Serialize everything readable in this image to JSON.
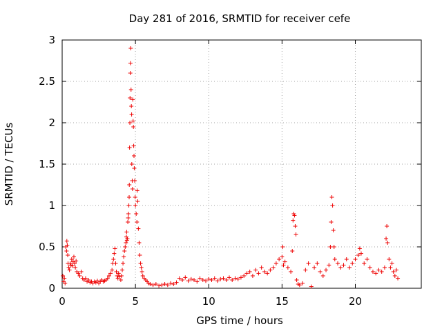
{
  "chart_data": {
    "type": "scatter",
    "title": "Day 281 of 2016, SRMTID for receiver cefe",
    "xlabel": "GPS time / hours",
    "ylabel": "SRMTID / TECUs",
    "xlim": [
      0,
      24.5
    ],
    "ylim": [
      0,
      3
    ],
    "xticks": [
      0,
      5,
      10,
      15,
      20
    ],
    "yticks": [
      0,
      0.5,
      1,
      1.5,
      2,
      2.5,
      3
    ],
    "ytick_labels": [
      "0",
      "0.5",
      "1",
      "1.5",
      "2",
      "2.5",
      "3"
    ],
    "grid": true,
    "marker": "+",
    "color": "#ee0000",
    "series": [
      {
        "name": "SRMTID",
        "points": [
          [
            0.05,
            0.15
          ],
          [
            0.1,
            0.08
          ],
          [
            0.15,
            0.12
          ],
          [
            0.2,
            0.06
          ],
          [
            0.25,
            0.5
          ],
          [
            0.3,
            0.45
          ],
          [
            0.32,
            0.57
          ],
          [
            0.35,
            0.52
          ],
          [
            0.38,
            0.4
          ],
          [
            0.4,
            0.3
          ],
          [
            0.45,
            0.25
          ],
          [
            0.5,
            0.22
          ],
          [
            0.55,
            0.3
          ],
          [
            0.6,
            0.28
          ],
          [
            0.65,
            0.35
          ],
          [
            0.7,
            0.27
          ],
          [
            0.75,
            0.32
          ],
          [
            0.8,
            0.38
          ],
          [
            0.85,
            0.3
          ],
          [
            0.9,
            0.25
          ],
          [
            0.95,
            0.33
          ],
          [
            1.0,
            0.2
          ],
          [
            1.1,
            0.18
          ],
          [
            1.2,
            0.15
          ],
          [
            1.3,
            0.2
          ],
          [
            1.4,
            0.12
          ],
          [
            1.5,
            0.1
          ],
          [
            1.6,
            0.12
          ],
          [
            1.7,
            0.08
          ],
          [
            1.8,
            0.1
          ],
          [
            1.9,
            0.07
          ],
          [
            2.0,
            0.08
          ],
          [
            2.1,
            0.06
          ],
          [
            2.2,
            0.08
          ],
          [
            2.3,
            0.07
          ],
          [
            2.4,
            0.09
          ],
          [
            2.5,
            0.06
          ],
          [
            2.6,
            0.08
          ],
          [
            2.7,
            0.1
          ],
          [
            2.8,
            0.08
          ],
          [
            2.9,
            0.09
          ],
          [
            3.0,
            0.1
          ],
          [
            3.1,
            0.12
          ],
          [
            3.2,
            0.15
          ],
          [
            3.3,
            0.18
          ],
          [
            3.4,
            0.22
          ],
          [
            3.45,
            0.3
          ],
          [
            3.5,
            0.35
          ],
          [
            3.55,
            0.42
          ],
          [
            3.6,
            0.48
          ],
          [
            3.65,
            0.3
          ],
          [
            3.7,
            0.2
          ],
          [
            3.75,
            0.15
          ],
          [
            3.8,
            0.12
          ],
          [
            3.85,
            0.18
          ],
          [
            3.9,
            0.14
          ],
          [
            4.0,
            0.1
          ],
          [
            4.05,
            0.15
          ],
          [
            4.1,
            0.22
          ],
          [
            4.15,
            0.3
          ],
          [
            4.2,
            0.38
          ],
          [
            4.25,
            0.45
          ],
          [
            4.3,
            0.5
          ],
          [
            4.35,
            0.55
          ],
          [
            4.38,
            0.62
          ],
          [
            4.4,
            0.68
          ],
          [
            4.42,
            0.58
          ],
          [
            4.45,
            0.6
          ],
          [
            4.48,
            0.8
          ],
          [
            4.5,
            0.85
          ],
          [
            4.52,
            0.9
          ],
          [
            4.55,
            1.0
          ],
          [
            4.57,
            1.1
          ],
          [
            4.58,
            1.25
          ],
          [
            4.6,
            1.7
          ],
          [
            4.62,
            2.0
          ],
          [
            4.63,
            2.3
          ],
          [
            4.65,
            2.6
          ],
          [
            4.66,
            2.72
          ],
          [
            4.68,
            2.9
          ],
          [
            4.7,
            2.4
          ],
          [
            4.72,
            2.2
          ],
          [
            4.74,
            2.1
          ],
          [
            4.75,
            1.5
          ],
          [
            4.78,
            1.3
          ],
          [
            4.8,
            1.2
          ],
          [
            4.82,
            2.28
          ],
          [
            4.84,
            2.02
          ],
          [
            4.86,
            1.95
          ],
          [
            4.88,
            1.72
          ],
          [
            4.9,
            1.6
          ],
          [
            4.92,
            1.45
          ],
          [
            4.95,
            1.3
          ],
          [
            4.98,
            1.1
          ],
          [
            5.0,
            1.0
          ],
          [
            5.05,
            0.9
          ],
          [
            5.1,
            0.8
          ],
          [
            5.12,
            1.18
          ],
          [
            5.15,
            1.05
          ],
          [
            5.2,
            0.72
          ],
          [
            5.25,
            0.55
          ],
          [
            5.3,
            0.4
          ],
          [
            5.35,
            0.3
          ],
          [
            5.4,
            0.25
          ],
          [
            5.45,
            0.2
          ],
          [
            5.5,
            0.15
          ],
          [
            5.6,
            0.12
          ],
          [
            5.7,
            0.1
          ],
          [
            5.8,
            0.08
          ],
          [
            5.9,
            0.06
          ],
          [
            6.0,
            0.05
          ],
          [
            6.2,
            0.04
          ],
          [
            6.4,
            0.05
          ],
          [
            6.6,
            0.03
          ],
          [
            6.8,
            0.04
          ],
          [
            7.0,
            0.05
          ],
          [
            7.2,
            0.04
          ],
          [
            7.4,
            0.06
          ],
          [
            7.6,
            0.05
          ],
          [
            7.8,
            0.07
          ],
          [
            8.0,
            0.12
          ],
          [
            8.2,
            0.1
          ],
          [
            8.4,
            0.13
          ],
          [
            8.6,
            0.09
          ],
          [
            8.8,
            0.11
          ],
          [
            9.0,
            0.1
          ],
          [
            9.2,
            0.08
          ],
          [
            9.4,
            0.12
          ],
          [
            9.6,
            0.1
          ],
          [
            9.8,
            0.09
          ],
          [
            10.0,
            0.11
          ],
          [
            10.2,
            0.1
          ],
          [
            10.4,
            0.12
          ],
          [
            10.6,
            0.09
          ],
          [
            10.8,
            0.11
          ],
          [
            11.0,
            0.12
          ],
          [
            11.2,
            0.1
          ],
          [
            11.4,
            0.13
          ],
          [
            11.6,
            0.1
          ],
          [
            11.8,
            0.12
          ],
          [
            12.0,
            0.11
          ],
          [
            12.2,
            0.13
          ],
          [
            12.4,
            0.15
          ],
          [
            12.6,
            0.18
          ],
          [
            12.8,
            0.2
          ],
          [
            13.0,
            0.15
          ],
          [
            13.2,
            0.22
          ],
          [
            13.4,
            0.18
          ],
          [
            13.6,
            0.25
          ],
          [
            13.8,
            0.2
          ],
          [
            14.0,
            0.18
          ],
          [
            14.2,
            0.22
          ],
          [
            14.4,
            0.25
          ],
          [
            14.6,
            0.3
          ],
          [
            14.8,
            0.35
          ],
          [
            15.0,
            0.38
          ],
          [
            15.05,
            0.5
          ],
          [
            15.1,
            0.28
          ],
          [
            15.2,
            0.32
          ],
          [
            15.4,
            0.25
          ],
          [
            15.6,
            0.2
          ],
          [
            15.7,
            0.45
          ],
          [
            15.75,
            0.82
          ],
          [
            15.8,
            0.9
          ],
          [
            15.85,
            0.88
          ],
          [
            15.9,
            0.75
          ],
          [
            15.95,
            0.65
          ],
          [
            16.0,
            0.1
          ],
          [
            16.1,
            0.05
          ],
          [
            16.2,
            0.04
          ],
          [
            16.4,
            0.06
          ],
          [
            16.6,
            0.22
          ],
          [
            16.8,
            0.3
          ],
          [
            17.0,
            0.02
          ],
          [
            17.2,
            0.25
          ],
          [
            17.4,
            0.3
          ],
          [
            17.6,
            0.2
          ],
          [
            17.8,
            0.15
          ],
          [
            18.0,
            0.22
          ],
          [
            18.2,
            0.28
          ],
          [
            18.3,
            0.5
          ],
          [
            18.35,
            0.8
          ],
          [
            18.4,
            1.1
          ],
          [
            18.45,
            1.0
          ],
          [
            18.5,
            0.7
          ],
          [
            18.55,
            0.5
          ],
          [
            18.6,
            0.35
          ],
          [
            18.8,
            0.3
          ],
          [
            19.0,
            0.25
          ],
          [
            19.2,
            0.28
          ],
          [
            19.4,
            0.35
          ],
          [
            19.6,
            0.25
          ],
          [
            19.8,
            0.3
          ],
          [
            20.0,
            0.35
          ],
          [
            20.2,
            0.4
          ],
          [
            20.3,
            0.48
          ],
          [
            20.4,
            0.42
          ],
          [
            20.6,
            0.3
          ],
          [
            20.8,
            0.35
          ],
          [
            21.0,
            0.25
          ],
          [
            21.2,
            0.2
          ],
          [
            21.4,
            0.18
          ],
          [
            21.6,
            0.22
          ],
          [
            21.8,
            0.2
          ],
          [
            22.0,
            0.25
          ],
          [
            22.1,
            0.6
          ],
          [
            22.15,
            0.75
          ],
          [
            22.2,
            0.55
          ],
          [
            22.3,
            0.35
          ],
          [
            22.4,
            0.25
          ],
          [
            22.5,
            0.3
          ],
          [
            22.6,
            0.2
          ],
          [
            22.7,
            0.15
          ],
          [
            22.8,
            0.22
          ],
          [
            22.9,
            0.12
          ]
        ]
      }
    ]
  }
}
